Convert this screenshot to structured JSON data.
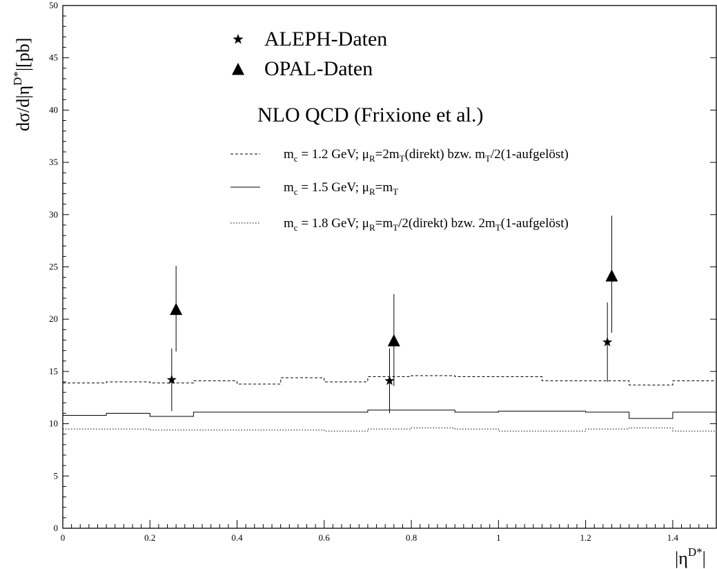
{
  "chart_data": {
    "type": "scatter",
    "title": "",
    "xlim": [
      0,
      1.5
    ],
    "ylim": [
      0,
      50
    ],
    "xticks": [
      0,
      0.2,
      0.4,
      0.6,
      0.8,
      1,
      1.2,
      1.4
    ],
    "xtick_labels": [
      "0",
      "0.2",
      "0.4",
      "0.6",
      "0.8",
      "1",
      "1.2",
      "1.4"
    ],
    "yticks": [
      0,
      5,
      10,
      15,
      20,
      25,
      30,
      35,
      40,
      45,
      50
    ],
    "ytick_labels": [
      "0",
      "5",
      "10",
      "15",
      "20",
      "25",
      "30",
      "35",
      "40",
      "45",
      "50"
    ],
    "xlabel": {
      "main": "|η",
      "sup": "D*",
      "end": "|"
    },
    "ylabel": {
      "pre": "dσ/d|η",
      "sup": "D*",
      "post": "|[pb]"
    },
    "grid": false,
    "legend_position": "top-center",
    "data_series": [
      {
        "name": "ALEPH-Daten",
        "marker": "star",
        "points": [
          {
            "x": 0.25,
            "y": 14.2,
            "err_up": 3.0,
            "err_down": 3.0
          },
          {
            "x": 0.75,
            "y": 14.1,
            "err_up": 3.1,
            "err_down": 3.1
          },
          {
            "x": 1.25,
            "y": 17.8,
            "err_up": 3.8,
            "err_down": 3.8
          }
        ]
      },
      {
        "name": "OPAL-Daten",
        "marker": "triangle",
        "points": [
          {
            "x": 0.26,
            "y": 20.9,
            "err_up": 4.2,
            "err_down": 4.0
          },
          {
            "x": 0.76,
            "y": 17.9,
            "err_up": 4.5,
            "err_down": 4.3
          },
          {
            "x": 1.26,
            "y": 24.1,
            "err_up": 5.8,
            "err_down": 5.4
          }
        ]
      }
    ],
    "theory_title": "NLO QCD (Frixione et al.)",
    "bin_edges": [
      0,
      0.1,
      0.2,
      0.3,
      0.4,
      0.5,
      0.6,
      0.7,
      0.8,
      0.9,
      1.0,
      1.1,
      1.2,
      1.3,
      1.4,
      1.5
    ],
    "theory_series": [
      {
        "style": "dashed",
        "label": {
          "p1": "m",
          "s1": "c",
          "p2": " = 1.2 GeV; μ",
          "s2": "R",
          "p3": "=2m",
          "s3": "T",
          "p4": "(direkt) bzw. m",
          "s4": "T",
          "p5": "/2(1-aufgelöst)"
        },
        "values": [
          13.9,
          14.0,
          13.9,
          14.1,
          13.8,
          14.4,
          14.0,
          14.5,
          14.6,
          14.5,
          14.5,
          14.1,
          14.1,
          13.7,
          14.1
        ]
      },
      {
        "style": "solid",
        "label": {
          "p1": "m",
          "s1": "c",
          "p2": " = 1.5 GeV; μ",
          "s2": "R",
          "p3": "=m",
          "s3": "T",
          "p4": "",
          "s4": "",
          "p5": ""
        },
        "values": [
          10.8,
          11.0,
          10.7,
          11.1,
          11.1,
          11.1,
          11.1,
          11.3,
          11.3,
          11.1,
          11.2,
          11.2,
          11.1,
          10.5,
          11.1
        ]
      },
      {
        "style": "dotted",
        "label": {
          "p1": "m",
          "s1": "c",
          "p2": " = 1.8 GeV; μ",
          "s2": "R",
          "p3": "=m",
          "s3": "T",
          "p4": "/2(direkt) bzw. 2m",
          "s4": "T",
          "p5": "(1-aufgelöst)"
        },
        "values": [
          9.5,
          9.5,
          9.4,
          9.4,
          9.4,
          9.4,
          9.3,
          9.5,
          9.6,
          9.5,
          9.3,
          9.3,
          9.5,
          9.6,
          9.3
        ]
      }
    ]
  }
}
